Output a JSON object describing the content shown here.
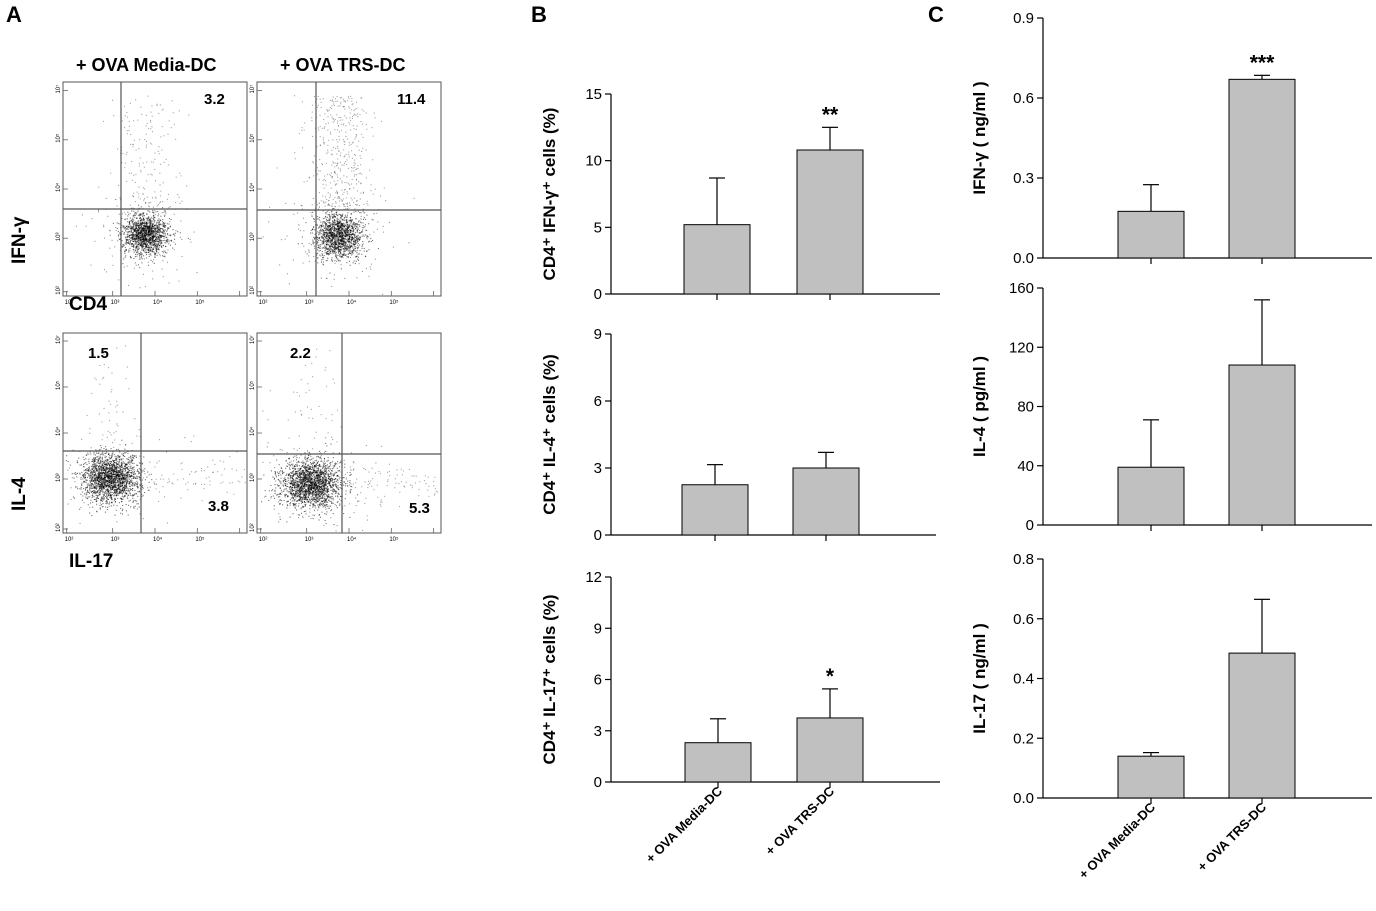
{
  "panels": {
    "a": "A",
    "b": "B",
    "c": "C"
  },
  "flow": {
    "conditions": [
      "+ OVA Media-DC",
      "+ OVA  TRS-DC"
    ],
    "rows": [
      {
        "y_marker": "IFN-γ",
        "x_marker": "CD4",
        "quadrant_values": [
          "3.2",
          "11.4"
        ]
      },
      {
        "y_marker": "IL-4",
        "x_marker": "IL-17",
        "quadrant_values_upper_left": [
          "1.5",
          "2.2"
        ],
        "quadrant_values_lower_right": [
          "3.8",
          "5.3"
        ]
      }
    ],
    "axis_tick_labels": [
      "10²",
      "10³",
      "10⁴",
      "10⁵",
      "10⁷"
    ]
  },
  "chart_data": [
    {
      "type": "bar",
      "panel": "B",
      "ylabel": "CD4⁺ IFN-γ⁺ cells (%)",
      "categories": [
        "+ OVA Media-DC",
        "+ OVA TRS-DC"
      ],
      "values": [
        5.2,
        10.8
      ],
      "errors": [
        3.5,
        1.7
      ],
      "ylim": [
        0,
        15
      ],
      "yticks": [
        0,
        5,
        10,
        15
      ],
      "ytick_labels": [
        "0",
        "5",
        "10",
        "15"
      ],
      "significance": [
        "",
        "**"
      ]
    },
    {
      "type": "bar",
      "panel": "B",
      "ylabel": "CD4⁺ IL-4⁺ cells (%)",
      "categories": [
        "+ OVA Media-DC",
        "+ OVA TRS-DC"
      ],
      "values": [
        2.25,
        3.0
      ],
      "errors": [
        0.9,
        0.7
      ],
      "ylim": [
        0,
        9
      ],
      "yticks": [
        0,
        3,
        6,
        9
      ],
      "ytick_labels": [
        "0",
        "3",
        "6",
        "9"
      ],
      "significance": [
        "",
        ""
      ]
    },
    {
      "type": "bar",
      "panel": "B",
      "ylabel": "CD4⁺ IL-17⁺ cells (%)",
      "categories": [
        "+ OVA Media-DC",
        "+ OVA TRS-DC"
      ],
      "values": [
        2.3,
        3.75
      ],
      "errors": [
        1.4,
        1.7
      ],
      "ylim": [
        0,
        12
      ],
      "yticks": [
        0,
        3,
        6,
        9,
        12
      ],
      "ytick_labels": [
        "0",
        "3",
        "6",
        "9",
        "12"
      ],
      "significance": [
        "",
        "*"
      ]
    },
    {
      "type": "bar",
      "panel": "C",
      "ylabel": "IFN-γ ( ng/ml )",
      "categories": [
        "+ OVA Media-DC",
        "+ OVA TRS-DC"
      ],
      "values": [
        0.175,
        0.67
      ],
      "errors": [
        0.1,
        0.015
      ],
      "ylim": [
        0,
        0.9
      ],
      "yticks": [
        0,
        0.3,
        0.6,
        0.9
      ],
      "ytick_labels": [
        "0.0",
        "0.3",
        "0.6",
        "0.9"
      ],
      "significance": [
        "",
        "***"
      ]
    },
    {
      "type": "bar",
      "panel": "C",
      "ylabel": "IL-4  ( pg/ml )",
      "categories": [
        "+ OVA Media-DC",
        "+ OVA TRS-DC"
      ],
      "values": [
        39,
        108
      ],
      "errors": [
        32,
        44
      ],
      "ylim": [
        0,
        160
      ],
      "yticks": [
        0,
        40,
        80,
        120,
        160
      ],
      "ytick_labels": [
        "0",
        "40",
        "80",
        "120",
        "160"
      ],
      "significance": [
        "",
        ""
      ]
    },
    {
      "type": "bar",
      "panel": "C",
      "ylabel": "IL-17 ( ng/ml )",
      "categories": [
        "+ OVA Media-DC",
        "+ OVA TRS-DC"
      ],
      "values": [
        0.14,
        0.485
      ],
      "errors": [
        0.012,
        0.18
      ],
      "ylim": [
        0,
        0.8
      ],
      "yticks": [
        0,
        0.2,
        0.4,
        0.6,
        0.8
      ],
      "ytick_labels": [
        "0.0",
        "0.2",
        "0.4",
        "0.6",
        "0.8"
      ],
      "significance": [
        "",
        ""
      ]
    }
  ]
}
